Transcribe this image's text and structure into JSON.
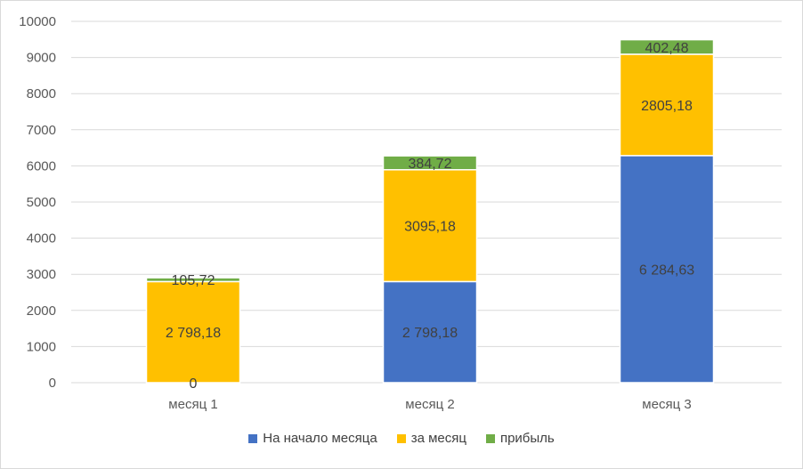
{
  "chart_data": {
    "type": "bar",
    "stacked": true,
    "categories": [
      "месяц 1",
      "месяц 2",
      "месяц 3"
    ],
    "series": [
      {
        "name": "На начало месяца",
        "color": "#4472C4",
        "values": [
          0,
          2798.18,
          6284.63
        ],
        "labels": [
          "0",
          "2 798,18",
          "6 284,63"
        ]
      },
      {
        "name": "за месяц",
        "color": "#FFC000",
        "values": [
          2798.18,
          3095.18,
          2805.18
        ],
        "labels": [
          "2 798,18",
          "3095,18",
          "2805,18"
        ]
      },
      {
        "name": "прибыль",
        "color": "#70AD47",
        "values": [
          105.72,
          384.72,
          402.48
        ],
        "labels": [
          "105,72",
          "384,72",
          "402,48"
        ]
      }
    ],
    "ylim": [
      0,
      10000
    ],
    "yticks": [
      0,
      1000,
      2000,
      3000,
      4000,
      5000,
      6000,
      7000,
      8000,
      9000,
      10000
    ],
    "grid": true,
    "legend_position": "bottom"
  }
}
